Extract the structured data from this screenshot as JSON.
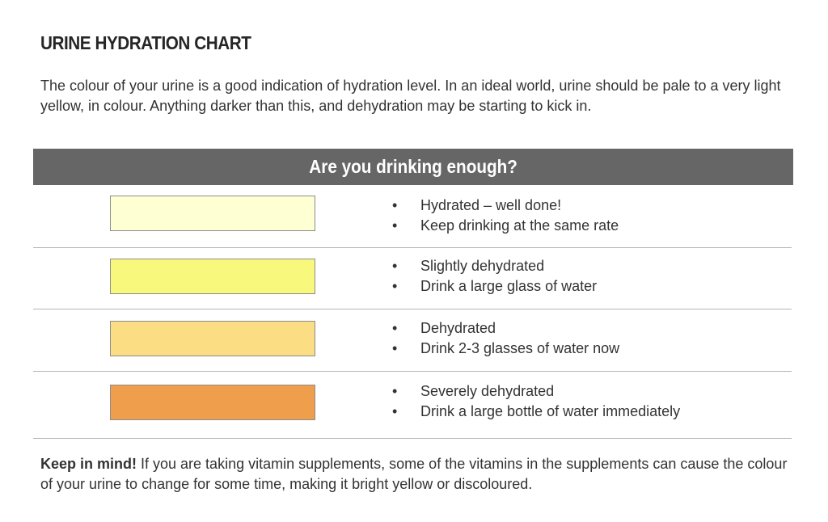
{
  "title": "URINE HYDRATION CHART",
  "intro": "The colour of your urine is a good indication of hydration level. In an ideal world, urine should be pale to a very light yellow, in colour. Anything darker than this, and dehydration may be starting to kick in.",
  "header": "Are you drinking enough?",
  "levels": [
    {
      "color": "#FFFFD4",
      "line1": "Hydrated – well done!",
      "line2": "Keep drinking at the same rate"
    },
    {
      "color": "#F8F87C",
      "line1": "Slightly dehydrated",
      "line2": "Drink a large glass of water"
    },
    {
      "color": "#FBDE84",
      "line1": "Dehydrated",
      "line2": "Drink 2-3 glasses of water now"
    },
    {
      "color": "#EF9F4C",
      "line1": "Severely dehydrated",
      "line2": "Drink a large bottle of water immediately"
    }
  ],
  "note": {
    "lead": "Keep in mind!",
    "text": " If you are taking vitamin supplements, some of the vitamins in the supplements can cause the colour of your urine to change for some time, making it bright yellow or discoloured."
  }
}
